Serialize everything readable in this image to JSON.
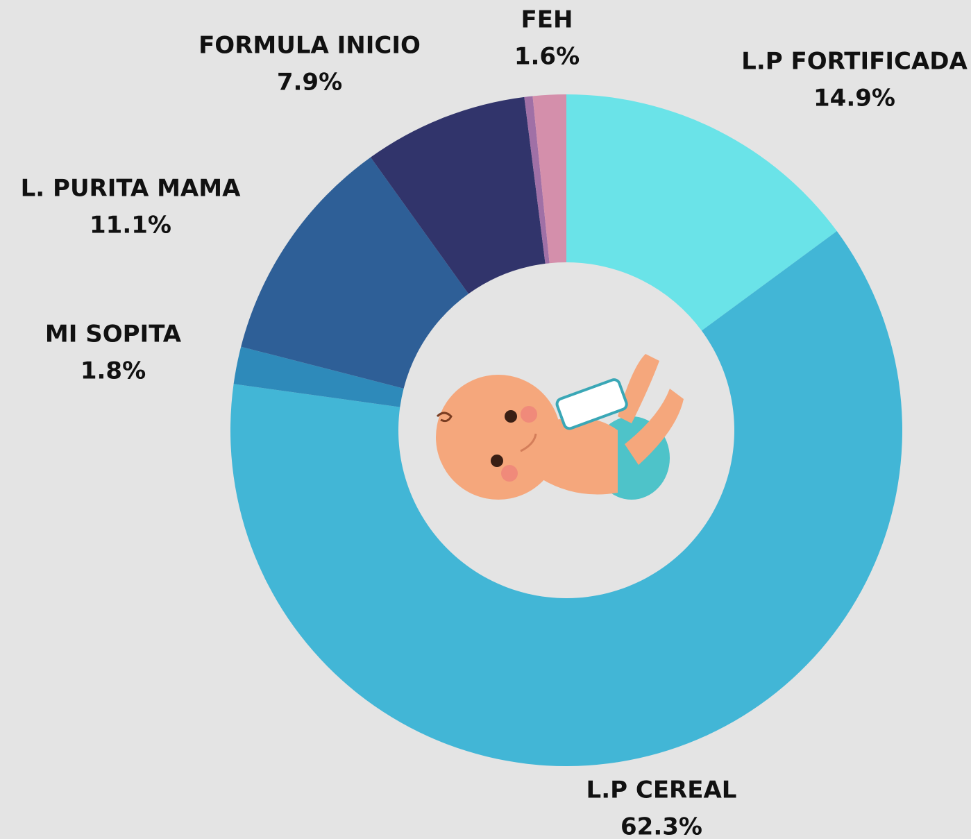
{
  "chart_data": {
    "type": "donut",
    "categories": [
      "L.P FORTIFICADA",
      "L.P CEREAL",
      "MI SOPITA",
      "L. PURITA MAMA",
      "FORMULA INICIO",
      null,
      "FEH"
    ],
    "values": [
      14.9,
      62.3,
      1.8,
      11.1,
      7.9,
      0.4,
      1.6
    ],
    "value_labels": [
      "14.9%",
      "62.3%",
      "1.8%",
      "11.1%",
      "7.9%",
      null,
      "1.6%"
    ],
    "colors": [
      "#6ae3e8",
      "#42b6d6",
      "#2e8aba",
      "#2e5f97",
      "#31346b",
      "#a070a6",
      "#d48fab"
    ]
  }
}
